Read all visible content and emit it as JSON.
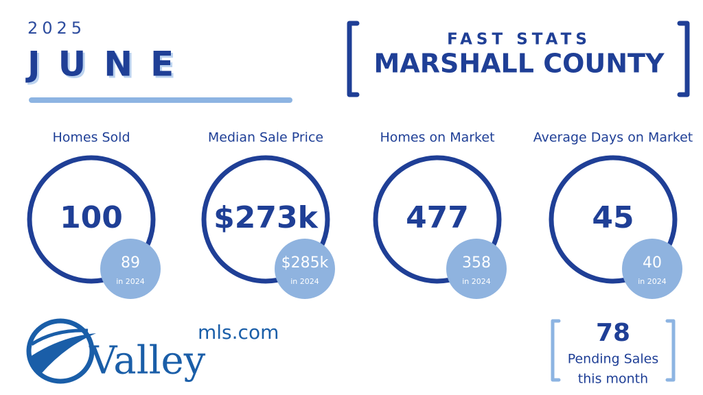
{
  "header": {
    "year": "2025",
    "month": "JUNE",
    "label": "FAST STATS",
    "county": "MARSHALL COUNTY"
  },
  "stats": [
    {
      "label": "Homes Sold",
      "value": "100",
      "prior": "89",
      "prior_label": "in 2024"
    },
    {
      "label": "Median Sale Price",
      "value": "$273k",
      "prior": "$285k",
      "prior_label": "in 2024"
    },
    {
      "label": "Homes on Market",
      "value": "477",
      "prior": "358",
      "prior_label": "in 2024"
    },
    {
      "label": "Average Days on Market",
      "value": "45",
      "prior": "40",
      "prior_label": "in 2024"
    }
  ],
  "pending": {
    "value": "78",
    "lines": [
      "Pending Sales",
      "this month"
    ]
  },
  "logo": {
    "domain": "mls.com",
    "name": "Valley"
  }
}
